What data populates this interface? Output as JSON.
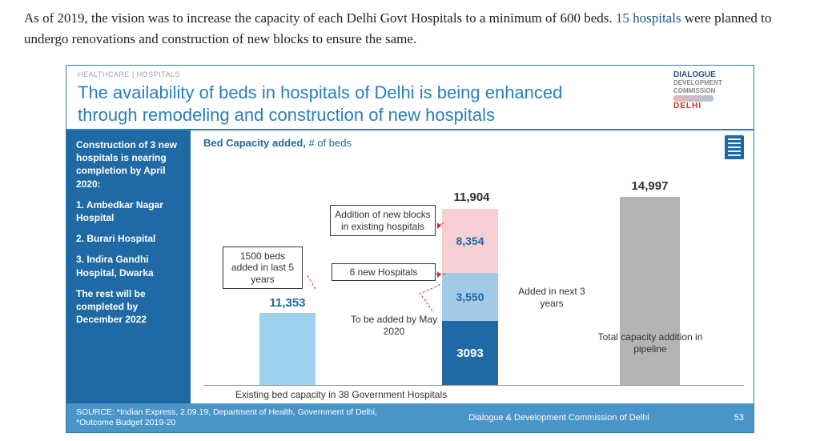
{
  "intro": {
    "pre": "As of 2019, the vision was to increase the capacity of each Delhi Govt Hospitals to a minimum of 600 beds. ",
    "link_text": "15 hospitals",
    "post": " were planned to undergo renovations and construction of new blocks to ensure the same."
  },
  "breadcrumb": "HEALTHCARE | HOSPITALS",
  "title": "The availability of beds in hospitals of Delhi is being enhanced through remodeling and construction of new hospitals",
  "logo": {
    "l1": "DIALOGUE",
    "l2": "DEVELOPMENT",
    "l3": "COMMISSION",
    "l4": "DELHI"
  },
  "sidebar": {
    "p1": "Construction of 3 new hospitals is nearing completion by April 2020:",
    "h1": "1. Ambedkar Nagar Hospital",
    "h2": "2. Burari Hospital",
    "h3": "3. Indira Gandhi Hospital, Dwarka",
    "p2": "The rest will be completed by December 2022"
  },
  "subtitle_bold": "Bed Capacity added,",
  "subtitle_rest": " # of beds",
  "chart": {
    "type": "stacked-bar-waterfall",
    "colors": {
      "existing": "#9dd1ee",
      "may2020": "#1f6aa5",
      "new_hosp": "#a3c9e8",
      "new_blocks": "#f5cfd2",
      "pipeline": "#b4b4b4",
      "accent_text": "#1f6aa5",
      "dash": "#c9302c",
      "background": "#ffffff"
    },
    "bars": {
      "existing": {
        "label": "11,353",
        "value": 11353
      },
      "additions_total": {
        "label": "11,904",
        "value": 11904
      },
      "segments": {
        "may2020": {
          "label": "3093",
          "value": 3093
        },
        "six_new": {
          "label": "3,550",
          "value": 3550
        },
        "new_blocks": {
          "label": "8,354",
          "value": 8354
        }
      },
      "pipeline": {
        "label": "14,997",
        "value": 14997
      }
    },
    "annotations": {
      "a1": "1500 beds added in last 5 years",
      "a2": "To be added by May 2020",
      "a3": "6 new Hospitals",
      "a4": "Addition of new blocks in existing hospitals",
      "a5": "Added in next 3 years",
      "a6": "Total capacity addition in pipeline"
    },
    "xlabel": "Existing bed capacity in 38 Government Hospitals"
  },
  "footer": {
    "source": "SOURCE: *Indian Express, 2.09.19, Department of Health, Government of Delhi, *Outcome Budget 2019-20",
    "org": "Dialogue & Development Commission of Delhi",
    "page": "53"
  }
}
